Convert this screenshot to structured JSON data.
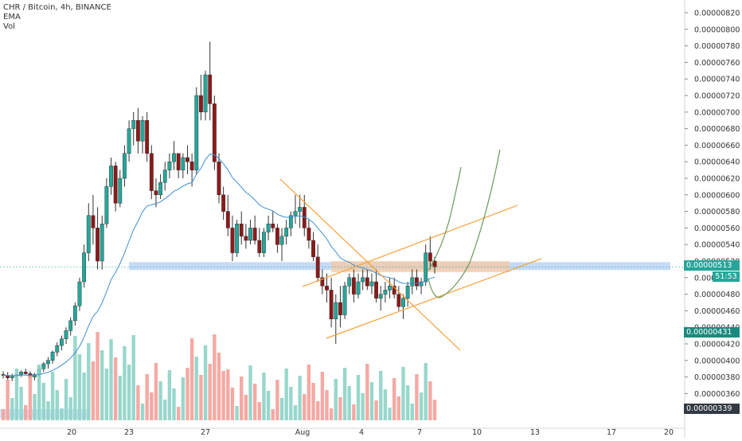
{
  "legend": {
    "symbol": "CHR / Bitcoin, 4h, BINANCE",
    "indicator_1": "EMA",
    "indicator_2": "Vol"
  },
  "price_labels": {
    "last": "0.00000513",
    "countdown": "51:53",
    "low_marker": "0.00000431",
    "bottom_marker": "0.00000339"
  },
  "colors": {
    "up": "#26a69a",
    "down": "#ef5350",
    "candle_up_body": "#26a69a",
    "candle_down_body": "#8b1a1a",
    "wick": "#333333",
    "ema": "#3d8fd1",
    "trendline": "#f7a035",
    "projection": "#6a9a5a",
    "support_zone": "#b8d2f5",
    "resistance_zone": "#f6c9a4",
    "axis_text": "#333333",
    "vol_up": "#8dd3c7",
    "vol_down": "#f4a09a"
  },
  "chart_data": {
    "type": "candlestick",
    "title": "CHR / Bitcoin, 4h, BINANCE",
    "y_axis": {
      "ticks": [
        "0.00000820",
        "0.00000800",
        "0.00000780",
        "0.00000760",
        "0.00000740",
        "0.00000720",
        "0.00000700",
        "0.00000680",
        "0.00000660",
        "0.00000640",
        "0.00000620",
        "0.00000600",
        "0.00000580",
        "0.00000560",
        "0.00000540",
        "0.00000520",
        "0.00000500",
        "0.00000480",
        "0.00000460",
        "0.00000440",
        "0.00000420",
        "0.00000400",
        "0.00000380",
        "0.00000360",
        "0.00000340"
      ],
      "range": [
        3.3e-06,
        8.3e-06
      ]
    },
    "x_axis": {
      "ticks": [
        "20",
        "23",
        "27",
        "Aug",
        "4",
        "7",
        "10",
        "13",
        "17",
        "20"
      ]
    },
    "candles_ohlc_x1e8": [
      [
        383,
        387,
        378,
        382
      ],
      [
        382,
        386,
        376,
        379
      ],
      [
        379,
        384,
        375,
        381
      ],
      [
        381,
        385,
        378,
        383
      ],
      [
        383,
        388,
        380,
        386
      ],
      [
        386,
        390,
        382,
        384
      ],
      [
        384,
        387,
        378,
        380
      ],
      [
        380,
        385,
        376,
        383
      ],
      [
        383,
        392,
        380,
        390
      ],
      [
        390,
        398,
        386,
        396
      ],
      [
        396,
        404,
        390,
        400
      ],
      [
        400,
        412,
        396,
        410
      ],
      [
        410,
        422,
        405,
        418
      ],
      [
        418,
        430,
        412,
        426
      ],
      [
        426,
        440,
        420,
        436
      ],
      [
        436,
        452,
        430,
        448
      ],
      [
        448,
        470,
        442,
        466
      ],
      [
        466,
        500,
        460,
        495
      ],
      [
        495,
        540,
        488,
        530
      ],
      [
        530,
        590,
        520,
        575
      ],
      [
        575,
        600,
        540,
        560
      ],
      [
        560,
        585,
        510,
        520
      ],
      [
        520,
        575,
        510,
        565
      ],
      [
        565,
        620,
        560,
        610
      ],
      [
        610,
        645,
        600,
        635
      ],
      [
        635,
        640,
        580,
        590
      ],
      [
        590,
        630,
        585,
        620
      ],
      [
        620,
        660,
        610,
        650
      ],
      [
        650,
        690,
        640,
        680
      ],
      [
        680,
        700,
        660,
        690
      ],
      [
        690,
        705,
        650,
        665
      ],
      [
        665,
        695,
        650,
        690
      ],
      [
        690,
        700,
        640,
        650
      ],
      [
        650,
        660,
        595,
        605
      ],
      [
        605,
        620,
        585,
        600
      ],
      [
        600,
        625,
        595,
        615
      ],
      [
        615,
        640,
        605,
        630
      ],
      [
        630,
        650,
        620,
        640
      ],
      [
        640,
        665,
        630,
        650
      ],
      [
        650,
        650,
        620,
        630
      ],
      [
        630,
        650,
        620,
        645
      ],
      [
        645,
        660,
        625,
        640
      ],
      [
        640,
        650,
        610,
        630
      ],
      [
        630,
        730,
        625,
        720
      ],
      [
        720,
        745,
        690,
        700
      ],
      [
        700,
        750,
        690,
        745
      ],
      [
        745,
        785,
        690,
        710
      ],
      [
        710,
        720,
        630,
        640
      ],
      [
        640,
        650,
        590,
        600
      ],
      [
        600,
        610,
        570,
        580
      ],
      [
        580,
        600,
        550,
        560
      ],
      [
        560,
        575,
        520,
        530
      ],
      [
        530,
        570,
        525,
        565
      ],
      [
        565,
        580,
        540,
        550
      ],
      [
        550,
        565,
        535,
        545
      ],
      [
        545,
        570,
        540,
        560
      ],
      [
        560,
        575,
        540,
        545
      ],
      [
        545,
        560,
        525,
        530
      ],
      [
        530,
        560,
        525,
        555
      ],
      [
        555,
        575,
        545,
        565
      ],
      [
        565,
        580,
        555,
        560
      ],
      [
        560,
        565,
        530,
        540
      ],
      [
        540,
        560,
        520,
        550
      ],
      [
        550,
        570,
        540,
        560
      ],
      [
        560,
        580,
        550,
        575
      ],
      [
        575,
        600,
        565,
        580
      ],
      [
        580,
        600,
        560,
        585
      ],
      [
        585,
        600,
        550,
        560
      ],
      [
        560,
        570,
        535,
        545
      ],
      [
        545,
        555,
        520,
        525
      ],
      [
        525,
        540,
        495,
        500
      ],
      [
        500,
        510,
        480,
        490
      ],
      [
        490,
        505,
        470,
        485
      ],
      [
        485,
        500,
        440,
        450
      ],
      [
        450,
        480,
        420,
        470
      ],
      [
        470,
        490,
        440,
        455
      ],
      [
        455,
        495,
        450,
        490
      ],
      [
        490,
        505,
        480,
        500
      ],
      [
        500,
        510,
        470,
        480
      ],
      [
        480,
        505,
        475,
        495
      ],
      [
        495,
        510,
        485,
        500
      ],
      [
        500,
        510,
        485,
        490
      ],
      [
        490,
        505,
        480,
        495
      ],
      [
        495,
        510,
        470,
        475
      ],
      [
        475,
        490,
        460,
        480
      ],
      [
        480,
        495,
        470,
        485
      ],
      [
        485,
        500,
        475,
        490
      ],
      [
        490,
        500,
        475,
        480
      ],
      [
        480,
        490,
        460,
        465
      ],
      [
        465,
        480,
        450,
        475
      ],
      [
        475,
        495,
        465,
        490
      ],
      [
        490,
        510,
        480,
        500
      ],
      [
        500,
        510,
        485,
        490
      ],
      [
        490,
        500,
        480,
        495
      ],
      [
        495,
        540,
        490,
        530
      ],
      [
        530,
        550,
        510,
        520
      ],
      [
        520,
        525,
        505,
        513
      ]
    ],
    "volume_style": "colored bars matching candle direction"
  }
}
